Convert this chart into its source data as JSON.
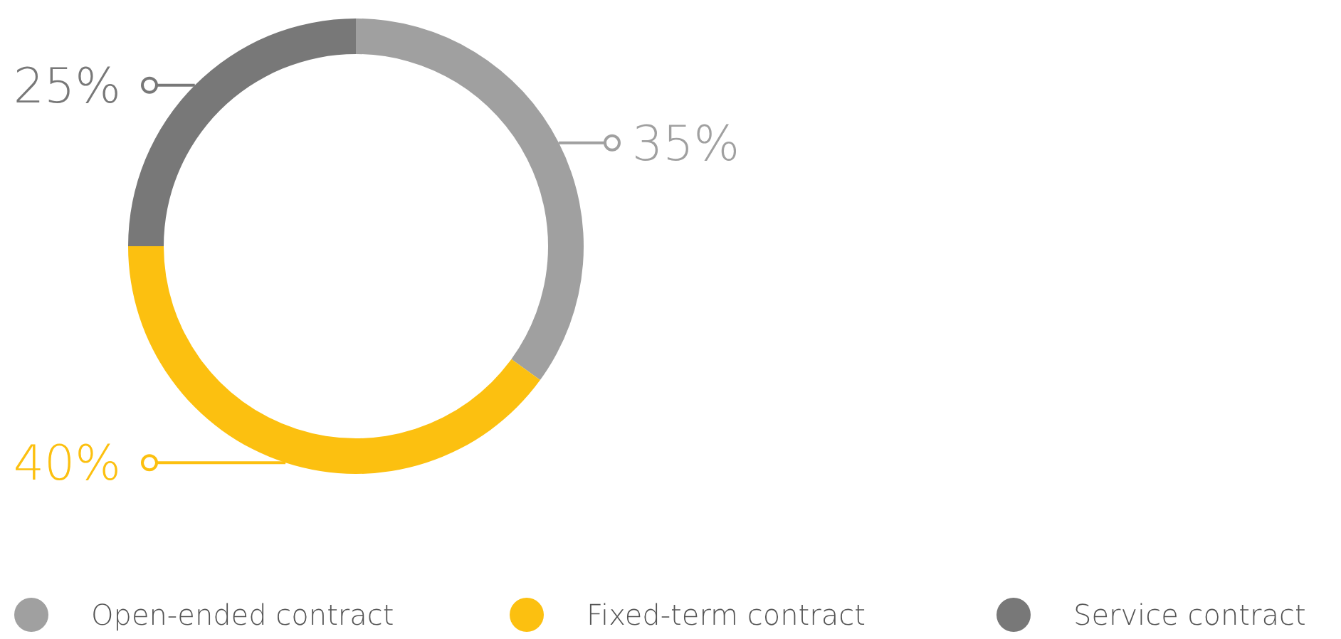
{
  "chart_data": {
    "type": "donut",
    "categories": [
      "Open-ended contract",
      "Fixed-term contract",
      "Service contract"
    ],
    "values": [
      35,
      40,
      25
    ],
    "colors": [
      "#a0a0a0",
      "#fcc010",
      "#787878"
    ],
    "value_labels": [
      "35%",
      "40%",
      "25%"
    ],
    "legend": "bottom"
  }
}
